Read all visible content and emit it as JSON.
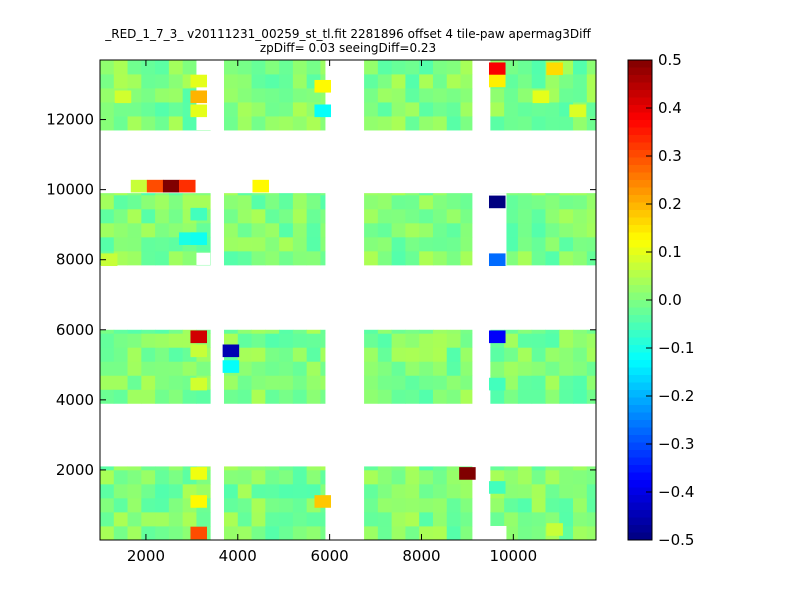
{
  "chart_data": {
    "type": "heatmap",
    "title": "_RED_1_7_3_ v20111231_00259_st_tl.fit 2281896 offset 4 tile-paw apermag3Diff",
    "subtitle": "zpDiff= 0.03 seeingDiff=0.23",
    "xlabel": "",
    "ylabel": "",
    "xlim": [
      1000,
      11800
    ],
    "ylim": [
      0,
      13700
    ],
    "x_ticks": [
      2000,
      4000,
      6000,
      8000,
      10000
    ],
    "x_tick_labels": [
      "2000",
      "4000",
      "6000",
      "8000",
      "10000"
    ],
    "y_ticks": [
      2000,
      4000,
      6000,
      8000,
      10000,
      12000
    ],
    "y_tick_labels": [
      "2000",
      "4000",
      "6000",
      "8000",
      "10000",
      "12000"
    ],
    "colorbar": {
      "vmin": -0.5,
      "vmax": 0.5,
      "colormap": "jet",
      "ticks": [
        0.5,
        0.4,
        0.3,
        0.2,
        0.1,
        0.0,
        -0.1,
        -0.2,
        -0.3,
        -0.4,
        -0.5
      ],
      "tick_labels": [
        "0.5",
        "0.4",
        "0.3",
        "0.2",
        "0.1",
        "0.0",
        "−0.1",
        "−0.2",
        "−0.3",
        "−0.4",
        "−0.5"
      ]
    },
    "grid": false,
    "baseline_value": 0.0,
    "blocks": [
      {
        "x": [
          1000,
          3400
        ],
        "y": [
          0,
          2100
        ]
      },
      {
        "x": [
          3700,
          5900
        ],
        "y": [
          0,
          2100
        ]
      },
      {
        "x": [
          6750,
          9100
        ],
        "y": [
          0,
          2100
        ]
      },
      {
        "x": [
          9500,
          11800
        ],
        "y": [
          0,
          2100
        ]
      },
      {
        "x": [
          1000,
          3400
        ],
        "y": [
          3900,
          6000
        ]
      },
      {
        "x": [
          3700,
          5900
        ],
        "y": [
          3900,
          6000
        ]
      },
      {
        "x": [
          6750,
          9100
        ],
        "y": [
          3900,
          6000
        ]
      },
      {
        "x": [
          9500,
          11800
        ],
        "y": [
          3900,
          6000
        ]
      },
      {
        "x": [
          1000,
          3400
        ],
        "y": [
          7850,
          9900
        ]
      },
      {
        "x": [
          3700,
          5900
        ],
        "y": [
          7850,
          9900
        ]
      },
      {
        "x": [
          6750,
          9100
        ],
        "y": [
          7850,
          9900
        ]
      },
      {
        "x": [
          9500,
          11800
        ],
        "y": [
          7850,
          9900
        ]
      },
      {
        "x": [
          1000,
          3400
        ],
        "y": [
          11700,
          13700
        ]
      },
      {
        "x": [
          3700,
          5900
        ],
        "y": [
          11700,
          13700
        ]
      },
      {
        "x": [
          6750,
          9100
        ],
        "y": [
          11700,
          13700
        ]
      },
      {
        "x": [
          9500,
          11800
        ],
        "y": [
          11700,
          13700
        ]
      }
    ],
    "gaps": [
      {
        "x": [
          3100,
          3700
        ],
        "y": [
          11700,
          13700
        ]
      },
      {
        "x": [
          9450,
          9850
        ],
        "y": [
          7850,
          9900
        ]
      },
      {
        "x": [
          9450,
          9850
        ],
        "y": [
          0,
          400
        ]
      },
      {
        "x": [
          3100,
          3400
        ],
        "y": [
          7850,
          8200
        ]
      }
    ],
    "outliers": [
      {
        "x": 9650,
        "y": 13450,
        "value": 0.38
      },
      {
        "x": 9650,
        "y": 13100,
        "value": 0.14
      },
      {
        "x": 10900,
        "y": 13450,
        "value": 0.16
      },
      {
        "x": 3150,
        "y": 12650,
        "value": 0.2
      },
      {
        "x": 3150,
        "y": 12250,
        "value": 0.1
      },
      {
        "x": 3150,
        "y": 13100,
        "value": 0.1
      },
      {
        "x": 5850,
        "y": 12950,
        "value": 0.13
      },
      {
        "x": 5850,
        "y": 12250,
        "value": -0.12
      },
      {
        "x": 1500,
        "y": 12650,
        "value": 0.08
      },
      {
        "x": 10600,
        "y": 12650,
        "value": 0.1
      },
      {
        "x": 11400,
        "y": 12250,
        "value": 0.09
      },
      {
        "x": 1850,
        "y": 10100,
        "value": 0.07
      },
      {
        "x": 2200,
        "y": 10100,
        "value": 0.3
      },
      {
        "x": 2550,
        "y": 10100,
        "value": 0.5
      },
      {
        "x": 2900,
        "y": 10100,
        "value": 0.33
      },
      {
        "x": 4500,
        "y": 10100,
        "value": 0.13
      },
      {
        "x": 9650,
        "y": 9650,
        "value": -0.5
      },
      {
        "x": 3150,
        "y": 9300,
        "value": -0.06
      },
      {
        "x": 2900,
        "y": 8600,
        "value": -0.1
      },
      {
        "x": 3150,
        "y": 8600,
        "value": -0.11
      },
      {
        "x": 9650,
        "y": 8000,
        "value": -0.27
      },
      {
        "x": 1200,
        "y": 8000,
        "value": 0.07
      },
      {
        "x": 3150,
        "y": 5800,
        "value": 0.42
      },
      {
        "x": 9650,
        "y": 5800,
        "value": -0.38
      },
      {
        "x": 3850,
        "y": 5400,
        "value": -0.45
      },
      {
        "x": 3850,
        "y": 4950,
        "value": -0.12
      },
      {
        "x": 3150,
        "y": 4450,
        "value": 0.08
      },
      {
        "x": 3150,
        "y": 5400,
        "value": 0.07
      },
      {
        "x": 9650,
        "y": 4450,
        "value": -0.06
      },
      {
        "x": 9000,
        "y": 1900,
        "value": 0.5
      },
      {
        "x": 3150,
        "y": 1900,
        "value": 0.11
      },
      {
        "x": 3150,
        "y": 1100,
        "value": 0.13
      },
      {
        "x": 3150,
        "y": 200,
        "value": 0.3
      },
      {
        "x": 5850,
        "y": 1100,
        "value": 0.18
      },
      {
        "x": 9650,
        "y": 1500,
        "value": -0.06
      },
      {
        "x": 10900,
        "y": 300,
        "value": 0.07
      }
    ]
  }
}
